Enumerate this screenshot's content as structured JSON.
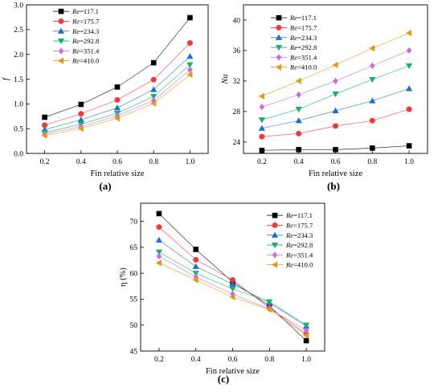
{
  "colors": {
    "117.1": "#000000",
    "175.7": "#f0393c",
    "234.3": "#1f6fc6",
    "292.8": "#1aaf6e",
    "351.4": "#c66fd8",
    "410.0": "#e49a18",
    "axis": "#000000"
  },
  "markers": [
    "square",
    "circle",
    "triangle-up",
    "triangle-down",
    "diamond",
    "triangle-left"
  ],
  "chart_data": [
    {
      "id": "a",
      "type": "line",
      "panel_label": "(a)",
      "xlabel": "Fin relative size",
      "ylabel": "f",
      "ylabel_italic": true,
      "xlim": [
        0.1,
        1.1
      ],
      "ylim": [
        0.0,
        3.0
      ],
      "xticks": [
        0.2,
        0.4,
        0.6,
        0.8,
        1.0
      ],
      "xtick_labels": [
        "0.2",
        "0.4",
        "0.6",
        "0.8",
        "1.0"
      ],
      "yticks": [
        0.0,
        0.5,
        1.0,
        1.5,
        2.0,
        2.5,
        3.0
      ],
      "ytick_labels": [
        "0.0",
        "0.5",
        "1.0",
        "1.5",
        "2.0",
        "2.5",
        "3.0"
      ],
      "legend_position": "top-left",
      "legend_prefix": "Re",
      "x": [
        0.2,
        0.4,
        0.6,
        0.8,
        1.0
      ],
      "series": [
        {
          "name": "=117.1",
          "key": "117.1",
          "values": [
            0.73,
            0.99,
            1.34,
            1.83,
            2.74
          ]
        },
        {
          "name": "=175.7",
          "key": "175.7",
          "values": [
            0.57,
            0.8,
            1.08,
            1.49,
            2.23
          ]
        },
        {
          "name": "=234.3",
          "key": "234.3",
          "values": [
            0.48,
            0.68,
            0.92,
            1.29,
            1.96
          ]
        },
        {
          "name": "=292.8",
          "key": "292.8",
          "values": [
            0.42,
            0.59,
            0.81,
            1.15,
            1.79
          ]
        },
        {
          "name": "=351.4",
          "key": "351.4",
          "values": [
            0.39,
            0.54,
            0.76,
            1.07,
            1.69
          ]
        },
        {
          "name": "=410.0",
          "key": "410.0",
          "values": [
            0.36,
            0.5,
            0.71,
            1.01,
            1.59
          ]
        }
      ]
    },
    {
      "id": "b",
      "type": "line",
      "panel_label": "(b)",
      "xlabel": "Fin relative size",
      "ylabel": "Nu",
      "ylabel_italic": true,
      "xlim": [
        0.1,
        1.1
      ],
      "ylim": [
        22.5,
        42.0
      ],
      "xticks": [
        0.2,
        0.4,
        0.6,
        0.8,
        1.0
      ],
      "xtick_labels": [
        "0.2",
        "0.4",
        "0.6",
        "0.8",
        "1.0"
      ],
      "yticks": [
        24,
        28,
        32,
        36,
        40
      ],
      "ytick_labels": [
        "24",
        "28",
        "32",
        "36",
        "40"
      ],
      "legend_position": "top-left",
      "legend_prefix": "Re",
      "x": [
        0.2,
        0.4,
        0.6,
        0.8,
        1.0
      ],
      "series": [
        {
          "name": "=117.1",
          "key": "117.1",
          "values": [
            22.9,
            23.0,
            23.0,
            23.2,
            23.5
          ]
        },
        {
          "name": "=175.7",
          "key": "175.7",
          "values": [
            24.7,
            25.1,
            26.1,
            26.8,
            28.3
          ]
        },
        {
          "name": "=234.3",
          "key": "234.3",
          "values": [
            25.8,
            26.8,
            28.1,
            29.4,
            31.0
          ]
        },
        {
          "name": "=292.8",
          "key": "292.8",
          "values": [
            26.9,
            28.3,
            30.3,
            32.2,
            34.0
          ]
        },
        {
          "name": "=351.4",
          "key": "351.4",
          "values": [
            28.6,
            30.2,
            32.0,
            34.0,
            36.0
          ]
        },
        {
          "name": "=410.0",
          "key": "410.0",
          "values": [
            30.0,
            32.0,
            34.1,
            36.3,
            38.3
          ]
        }
      ]
    },
    {
      "id": "c",
      "type": "line",
      "panel_label": "(c)",
      "xlabel": "Fin relative size",
      "ylabel": "η (%)",
      "ylabel_italic": false,
      "xlim": [
        0.1,
        1.1
      ],
      "ylim": [
        45.0,
        73.5
      ],
      "xticks": [
        0.2,
        0.4,
        0.6,
        0.8,
        1.0
      ],
      "xtick_labels": [
        "0.2",
        "0.4",
        "0.6",
        "0.8",
        "1.0"
      ],
      "yticks": [
        45,
        50,
        55,
        60,
        65,
        70
      ],
      "ytick_labels": [
        "45",
        "50",
        "55",
        "60",
        "65",
        "70"
      ],
      "legend_position": "top-right",
      "legend_prefix": "Re",
      "x": [
        0.2,
        0.4,
        0.6,
        0.8,
        1.0
      ],
      "series": [
        {
          "name": "=117.1",
          "key": "117.1",
          "values": [
            71.5,
            64.6,
            58.3,
            53.7,
            47.0
          ]
        },
        {
          "name": "=175.7",
          "key": "175.7",
          "values": [
            68.9,
            62.6,
            58.7,
            53.3,
            48.3
          ]
        },
        {
          "name": "=234.3",
          "key": "234.3",
          "values": [
            66.4,
            61.3,
            57.9,
            54.3,
            49.8
          ]
        },
        {
          "name": "=292.8",
          "key": "292.8",
          "values": [
            64.1,
            60.0,
            57.0,
            54.5,
            50.0
          ]
        },
        {
          "name": "=351.4",
          "key": "351.4",
          "values": [
            63.3,
            59.3,
            56.0,
            53.1,
            49.0
          ]
        },
        {
          "name": "=410.0",
          "key": "410.0",
          "values": [
            62.0,
            58.7,
            55.4,
            53.0,
            48.0
          ]
        }
      ]
    }
  ]
}
